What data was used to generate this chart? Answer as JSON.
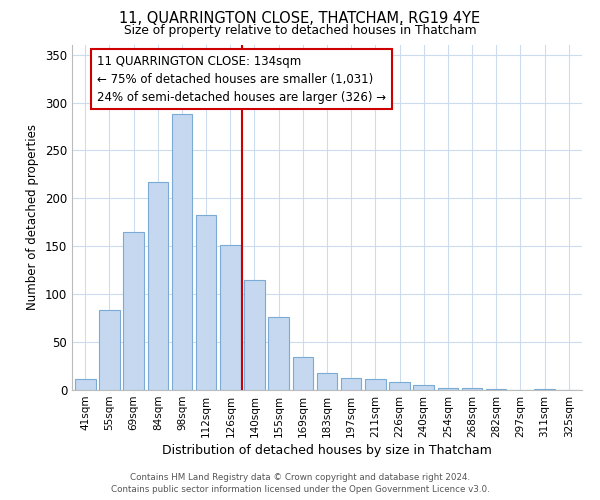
{
  "title": "11, QUARRINGTON CLOSE, THATCHAM, RG19 4YE",
  "subtitle": "Size of property relative to detached houses in Thatcham",
  "xlabel": "Distribution of detached houses by size in Thatcham",
  "ylabel": "Number of detached properties",
  "bar_labels": [
    "41sqm",
    "55sqm",
    "69sqm",
    "84sqm",
    "98sqm",
    "112sqm",
    "126sqm",
    "140sqm",
    "155sqm",
    "169sqm",
    "183sqm",
    "197sqm",
    "211sqm",
    "226sqm",
    "240sqm",
    "254sqm",
    "268sqm",
    "282sqm",
    "297sqm",
    "311sqm",
    "325sqm"
  ],
  "bar_values": [
    11,
    84,
    165,
    217,
    288,
    183,
    151,
    115,
    76,
    34,
    18,
    13,
    11,
    8,
    5,
    2,
    2,
    1,
    0,
    1,
    0
  ],
  "bar_color": "#c5d8f0",
  "bar_edge_color": "#7baad4",
  "highlight_line_color": "#cc0000",
  "annotation_line1": "11 QUARRINGTON CLOSE: 134sqm",
  "annotation_line2": "← 75% of detached houses are smaller (1,031)",
  "annotation_line3": "24% of semi-detached houses are larger (326) →",
  "annotation_box_color": "#ffffff",
  "annotation_box_edge_color": "#cc0000",
  "ylim": [
    0,
    360
  ],
  "yticks": [
    0,
    50,
    100,
    150,
    200,
    250,
    300,
    350
  ],
  "footer_line1": "Contains HM Land Registry data © Crown copyright and database right 2024.",
  "footer_line2": "Contains public sector information licensed under the Open Government Licence v3.0.",
  "bg_color": "#ffffff",
  "grid_color": "#ccdcee"
}
